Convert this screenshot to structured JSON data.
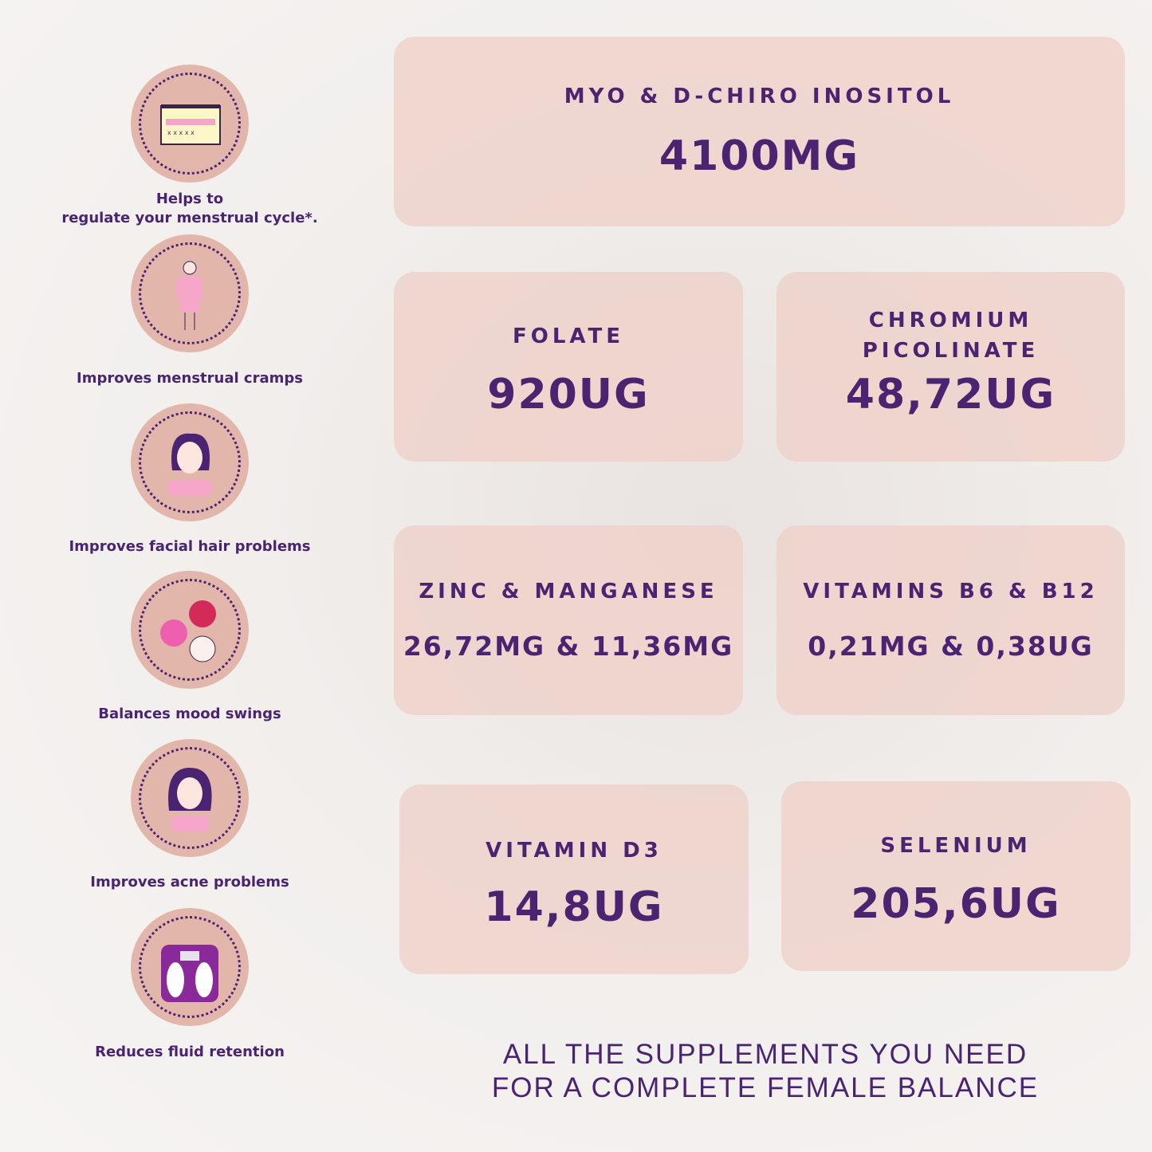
{
  "benefits": [
    {
      "icon": "calendar-icon",
      "caption_line1": "Helps to",
      "caption_line2": "regulate your menstrual cycle*."
    },
    {
      "icon": "cramps-icon",
      "caption": "Improves menstrual cramps"
    },
    {
      "icon": "facial-hair-icon",
      "caption": "Improves facial hair problems"
    },
    {
      "icon": "mood-swings-icon",
      "caption": "Balances mood swings"
    },
    {
      "icon": "acne-icon",
      "caption": "Improves acne problems"
    },
    {
      "icon": "scale-icon",
      "caption": "Reduces fluid retention"
    }
  ],
  "ingredients": [
    {
      "name": "MYO & D-CHIRO INOSITOL",
      "amount": "4100MG"
    },
    {
      "name": "FOLATE",
      "amount": "920UG"
    },
    {
      "name_line1": "CHROMIUM",
      "name_line2": "PICOLINATE",
      "amount": "48,72UG"
    },
    {
      "name": "ZINC & MANGANESE",
      "amount": "26,72MG & 11,36MG"
    },
    {
      "name": "VITAMINS B6 & B12",
      "amount": "0,21MG & 0,38UG"
    },
    {
      "name": "VITAMIN D3",
      "amount": "14,8UG"
    },
    {
      "name": "SELENIUM",
      "amount": "205,6UG"
    }
  ],
  "footer": {
    "line1": "ALL THE SUPPLEMENTS YOU NEED",
    "line2": "FOR A COMPLETE FEMALE BALANCE"
  },
  "colors": {
    "text": "#4a2470",
    "card": "#eecec6",
    "circle": "#e2b6aa",
    "background": "#f3f0ee"
  }
}
